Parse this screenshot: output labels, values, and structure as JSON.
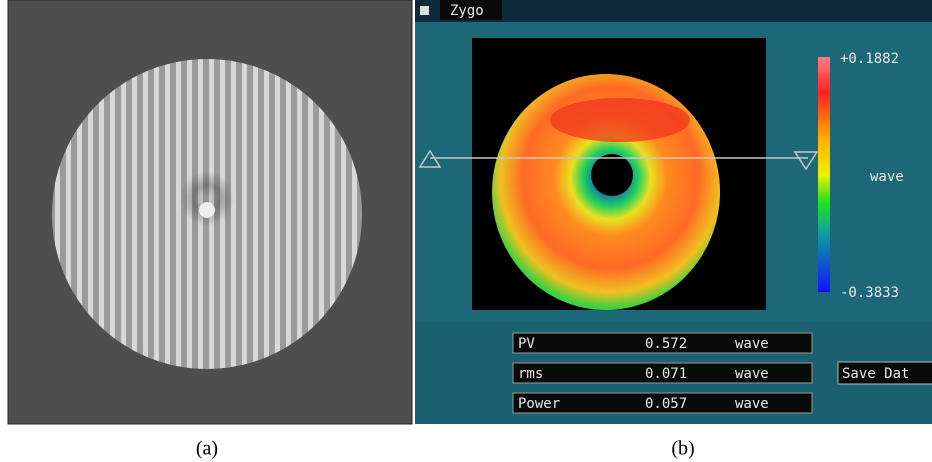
{
  "panel_b": {
    "window_title": "Zygo",
    "colorbar": {
      "max_label": "+0.1882",
      "unit": "wave",
      "min_label": "-0.3833"
    },
    "results": [
      [
        "PV",
        "0.572",
        "wave"
      ],
      [
        "rms",
        "0.071",
        "wave"
      ],
      [
        "Power",
        "0.057",
        "wave"
      ]
    ],
    "button": "Save Dat"
  },
  "captions": [
    "(a)",
    "(b)"
  ]
}
